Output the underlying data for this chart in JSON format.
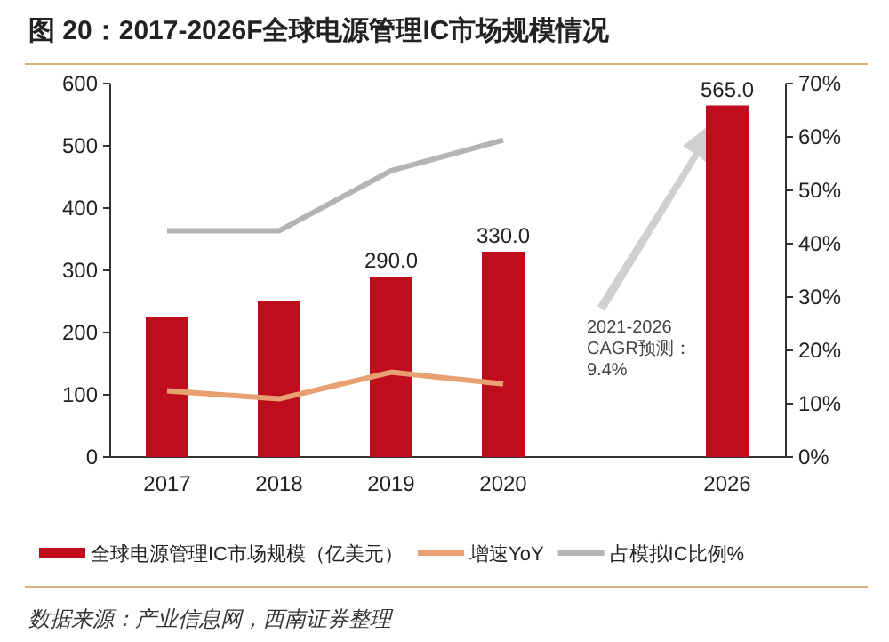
{
  "chart_data": {
    "type": "bar",
    "title": "图 20：2017-2026F全球电源管理IC市场规模情况",
    "categories": [
      "2017",
      "2018",
      "2019",
      "2020",
      null,
      "2026"
    ],
    "series": [
      {
        "name": "全球电源管理IC市场规模（亿美元）",
        "color": "#c00d1e",
        "values": [
          225,
          250,
          290,
          330,
          null,
          565
        ],
        "value_labels": [
          null,
          null,
          "290.0",
          "330.0",
          null,
          "565.0"
        ]
      },
      {
        "name": "增速YoY",
        "type": "line",
        "axis": "y2",
        "color": "#e8a070",
        "values": [
          12.4,
          10.9,
          15.9,
          13.7,
          null,
          null
        ]
      },
      {
        "name": "占模拟IC比例%",
        "type": "line",
        "axis": "y2",
        "color": "#b4b4b4",
        "values": [
          42.4,
          42.4,
          53.7,
          59.4,
          null,
          null
        ]
      }
    ],
    "ylim": [
      0,
      600
    ],
    "yticks": [
      0,
      100,
      200,
      300,
      400,
      500,
      600
    ],
    "y2lim": [
      0,
      70
    ],
    "y2ticks": [
      {
        "value": 0,
        "label": "0%"
      },
      {
        "value": 10,
        "label": "10%"
      },
      {
        "value": 20,
        "label": "20%"
      },
      {
        "value": 30,
        "label": "30%"
      },
      {
        "value": 40,
        "label": "40%"
      },
      {
        "value": 50,
        "label": "50%"
      },
      {
        "value": 60,
        "label": "60%"
      },
      {
        "value": 70,
        "label": "70%"
      }
    ],
    "legend": "bottom",
    "grid": false,
    "annotations": [
      "2021-2026",
      "CAGR预测：",
      "9.4%",
      "数据来源：产业信息网，西南证券整理"
    ]
  }
}
